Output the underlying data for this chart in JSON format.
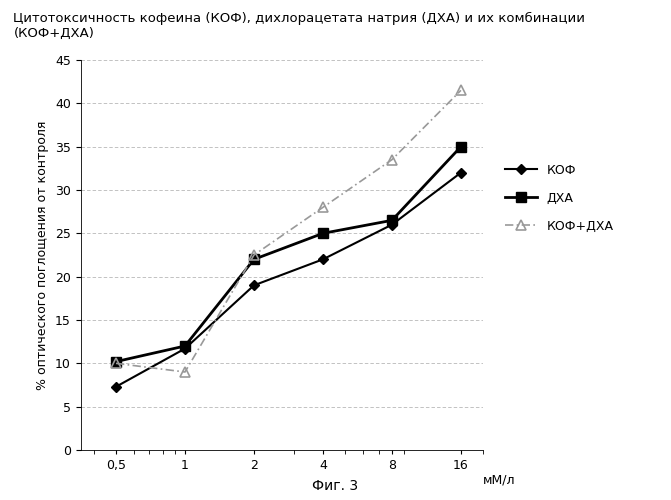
{
  "title": "Цитотоксичность кофеина (КОФ), дихлорацетата натрия (ДХА) и их комбинации (КОФ+ДХА)",
  "xlabel": "мМ/л",
  "ylabel": "% оптического поглощения от контроля",
  "caption": "Фиг. 3",
  "x_values": [
    0.5,
    1,
    2,
    4,
    8,
    16
  ],
  "x_labels": [
    "0,5",
    "1",
    "2",
    "4",
    "8",
    "16"
  ],
  "kof_values": [
    7.3,
    11.7,
    19.0,
    22.0,
    26.0,
    32.0
  ],
  "dxa_values": [
    10.2,
    12.0,
    22.0,
    25.0,
    26.5,
    35.0
  ],
  "kof_dxa_values": [
    10.0,
    9.0,
    22.5,
    28.0,
    33.5,
    41.5
  ],
  "legend_kof": "КОФ",
  "legend_dxa": "ДХА",
  "legend_combo": "КОФ+ДХА",
  "ylim": [
    0,
    45
  ],
  "yticks": [
    0,
    5,
    10,
    15,
    20,
    25,
    30,
    35,
    40,
    45
  ],
  "grid_color": "#aaaaaa",
  "line_color_kof": "#000000",
  "line_color_dxa": "#000000",
  "line_color_combo": "#999999",
  "bg_color": "#ffffff",
  "title_fontsize": 9.5,
  "axis_fontsize": 9,
  "tick_fontsize": 9,
  "legend_fontsize": 9,
  "caption_fontsize": 10
}
